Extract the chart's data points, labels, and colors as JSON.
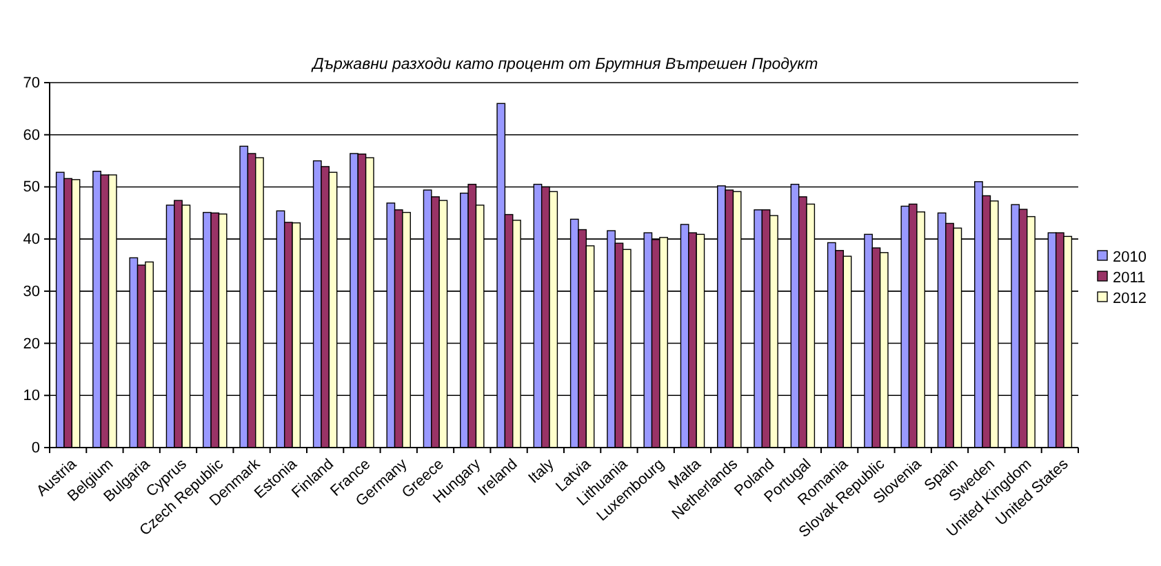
{
  "chart_data": {
    "type": "bar",
    "title": "Държавни разходи като процент от Брутния Вътрешен Продукт",
    "categories": [
      "Austria",
      "Belgium",
      "Bulgaria",
      "Cyprus",
      "Czech Republic",
      "Denmark",
      "Estonia",
      "Finland",
      "France",
      "Germany",
      "Greece",
      "Hungary",
      "Ireland",
      "Italy",
      "Latvia",
      "Lithuania",
      "Luxembourg",
      "Malta",
      "Netherlands",
      "Poland",
      "Portugal",
      "Romania",
      "Slovak Republic",
      "Slovenia",
      "Spain",
      "Sweden",
      "United Kingdom",
      "United States"
    ],
    "series": [
      {
        "name": "2010",
        "color": "#9999ff",
        "values": [
          52.8,
          53.0,
          36.4,
          46.5,
          45.1,
          57.8,
          45.4,
          55.0,
          56.4,
          46.9,
          49.4,
          48.8,
          66.0,
          50.5,
          43.8,
          41.6,
          41.2,
          42.8,
          50.2,
          45.6,
          50.5,
          39.3,
          40.9,
          46.3,
          45.0,
          51.0,
          46.6,
          41.2
        ]
      },
      {
        "name": "2011",
        "color": "#993366",
        "values": [
          51.6,
          52.3,
          35.0,
          47.4,
          45.0,
          56.4,
          43.2,
          53.9,
          56.3,
          45.6,
          48.1,
          50.5,
          44.7,
          50.0,
          41.8,
          39.2,
          39.9,
          41.2,
          49.4,
          45.6,
          48.1,
          37.8,
          38.3,
          46.7,
          43.0,
          48.3,
          45.7,
          41.2
        ]
      },
      {
        "name": "2012",
        "color": "#ffffcc",
        "values": [
          51.4,
          52.3,
          35.6,
          46.5,
          44.8,
          55.6,
          43.1,
          52.8,
          55.6,
          45.1,
          47.4,
          46.5,
          43.6,
          49.1,
          38.7,
          38.0,
          40.3,
          40.9,
          49.1,
          44.5,
          46.7,
          36.7,
          37.4,
          45.2,
          42.1,
          47.3,
          44.3,
          40.5
        ]
      }
    ],
    "ylim": [
      0,
      70
    ],
    "yticks": [
      0,
      10,
      20,
      30,
      40,
      50,
      60,
      70
    ],
    "grid": "y",
    "legend": "right"
  }
}
